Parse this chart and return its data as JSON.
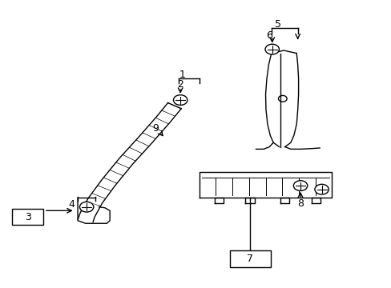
{
  "bg_color": "#ffffff",
  "figsize": [
    4.89,
    3.6
  ],
  "dpi": 100
}
